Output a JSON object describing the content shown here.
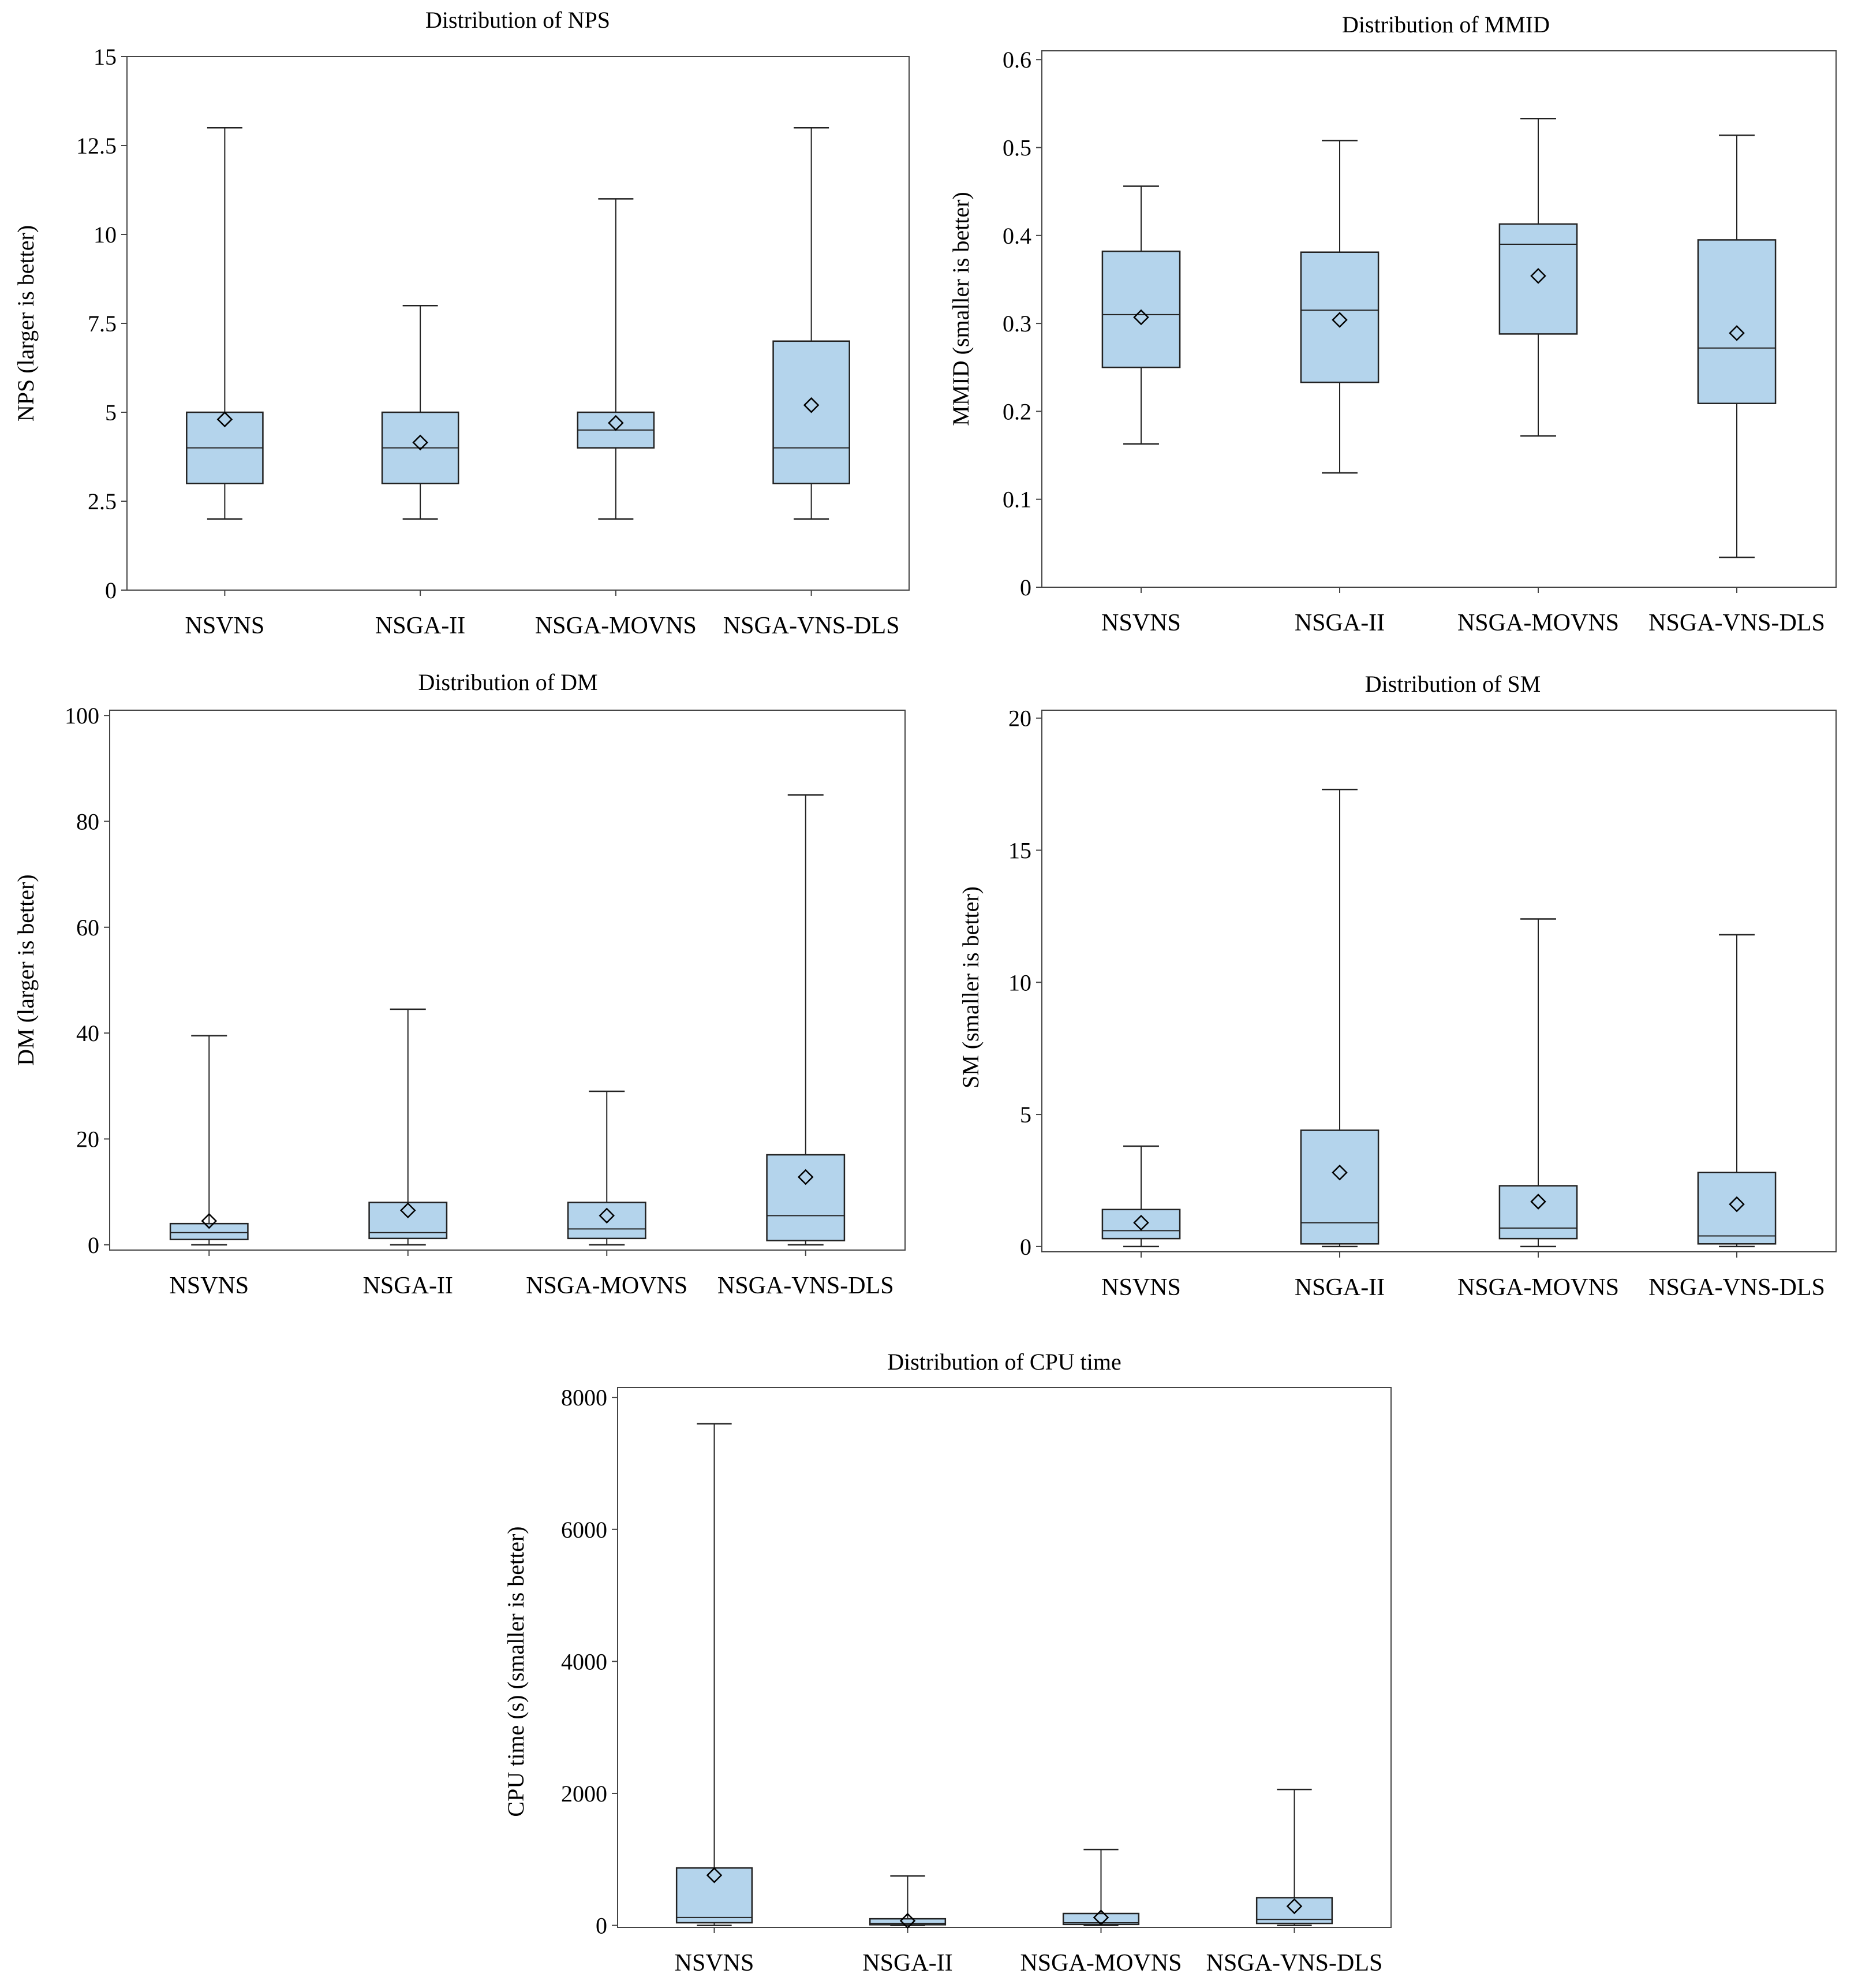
{
  "style": {
    "box_fill": "#b4d4ec",
    "box_stroke": "#222222",
    "frame_stroke": "#444444",
    "background": "#ffffff"
  },
  "chart_data": [
    {
      "id": "nps",
      "type": "boxplot",
      "title": "Distribution of NPS",
      "ylabel": "NPS (larger is better)",
      "ylim": [
        0,
        15
      ],
      "yticks": [
        0,
        2.5,
        5,
        7.5,
        10,
        12.5,
        15
      ],
      "ytick_labels": [
        "0",
        "2.5",
        "5",
        "7.5",
        "10",
        "12.5",
        "15"
      ],
      "categories": [
        "NSVNS",
        "NSGA-II",
        "NSGA-MOVNS",
        "NSGA-VNS-DLS"
      ],
      "boxes": [
        {
          "min": 2,
          "q1": 3,
          "median": 4,
          "q3": 5,
          "max": 13,
          "mean": 4.8
        },
        {
          "min": 2,
          "q1": 3,
          "median": 4,
          "q3": 5,
          "max": 8,
          "mean": 4.15
        },
        {
          "min": 2,
          "q1": 4,
          "median": 4.5,
          "q3": 5,
          "max": 11,
          "mean": 4.7
        },
        {
          "min": 2,
          "q1": 3,
          "median": 4,
          "q3": 7,
          "max": 13,
          "mean": 5.2
        }
      ]
    },
    {
      "id": "mmid",
      "type": "boxplot",
      "title": "Distribution of MMID",
      "ylabel": "MMID (smaller is better)",
      "ylim": [
        0,
        0.61
      ],
      "yticks": [
        0,
        0.1,
        0.2,
        0.3,
        0.4,
        0.5,
        0.6
      ],
      "ytick_labels": [
        "0",
        "0.1",
        "0.2",
        "0.3",
        "0.4",
        "0.5",
        "0.6"
      ],
      "categories": [
        "NSVNS",
        "NSGA-II",
        "NSGA-MOVNS",
        "NSGA-VNS-DLS"
      ],
      "boxes": [
        {
          "min": 0.163,
          "q1": 0.25,
          "median": 0.31,
          "q3": 0.382,
          "max": 0.456,
          "mean": 0.307
        },
        {
          "min": 0.13,
          "q1": 0.233,
          "median": 0.315,
          "q3": 0.381,
          "max": 0.508,
          "mean": 0.304
        },
        {
          "min": 0.172,
          "q1": 0.288,
          "median": 0.39,
          "q3": 0.413,
          "max": 0.533,
          "mean": 0.354
        },
        {
          "min": 0.034,
          "q1": 0.209,
          "median": 0.272,
          "q3": 0.395,
          "max": 0.514,
          "mean": 0.289
        }
      ]
    },
    {
      "id": "dm",
      "type": "boxplot",
      "title": "Distribution of DM",
      "ylabel": "DM (larger is better)",
      "ylim": [
        -1,
        101
      ],
      "yticks": [
        0,
        20,
        40,
        60,
        80,
        100
      ],
      "ytick_labels": [
        "0",
        "20",
        "40",
        "60",
        "80",
        "100"
      ],
      "categories": [
        "NSVNS",
        "NSGA-II",
        "NSGA-MOVNS",
        "NSGA-VNS-DLS"
      ],
      "boxes": [
        {
          "min": 0,
          "q1": 1,
          "median": 2.3,
          "q3": 4,
          "max": 39.5,
          "mean": 4.5
        },
        {
          "min": 0,
          "q1": 1.2,
          "median": 2.3,
          "q3": 8,
          "max": 44.5,
          "mean": 6.5
        },
        {
          "min": 0,
          "q1": 1.2,
          "median": 3,
          "q3": 8,
          "max": 29,
          "mean": 5.5
        },
        {
          "min": 0,
          "q1": 0.8,
          "median": 5.5,
          "q3": 17,
          "max": 85,
          "mean": 12.8
        }
      ]
    },
    {
      "id": "sm",
      "type": "boxplot",
      "title": "Distribution of SM",
      "ylabel": "SM (smaller is better)",
      "ylim": [
        -0.2,
        20.3
      ],
      "yticks": [
        0,
        5,
        10,
        15,
        20
      ],
      "ytick_labels": [
        "0",
        "5",
        "10",
        "15",
        "20"
      ],
      "categories": [
        "NSVNS",
        "NSGA-II",
        "NSGA-MOVNS",
        "NSGA-VNS-DLS"
      ],
      "boxes": [
        {
          "min": 0,
          "q1": 0.3,
          "median": 0.6,
          "q3": 1.4,
          "max": 3.8,
          "mean": 0.9
        },
        {
          "min": 0,
          "q1": 0.1,
          "median": 0.9,
          "q3": 4.4,
          "max": 17.3,
          "mean": 2.8
        },
        {
          "min": 0,
          "q1": 0.3,
          "median": 0.7,
          "q3": 2.3,
          "max": 12.4,
          "mean": 1.7
        },
        {
          "min": 0,
          "q1": 0.1,
          "median": 0.4,
          "q3": 2.8,
          "max": 11.8,
          "mean": 1.6
        }
      ]
    },
    {
      "id": "cpu",
      "type": "boxplot",
      "title": "Distribution of CPU time",
      "ylabel": "CPU time (s) (smaller is better)",
      "ylim": [
        -30,
        8150
      ],
      "yticks": [
        0,
        2000,
        4000,
        6000,
        8000
      ],
      "ytick_labels": [
        "0",
        "2000",
        "4000",
        "6000",
        "8000"
      ],
      "categories": [
        "NSVNS",
        "NSGA-II",
        "NSGA-MOVNS",
        "NSGA-VNS-DLS"
      ],
      "boxes": [
        {
          "min": 0,
          "q1": 40,
          "median": 120,
          "q3": 870,
          "max": 7600,
          "mean": 760
        },
        {
          "min": 0,
          "q1": 10,
          "median": 30,
          "q3": 100,
          "max": 750,
          "mean": 70
        },
        {
          "min": 0,
          "q1": 15,
          "median": 40,
          "q3": 180,
          "max": 1150,
          "mean": 120
        },
        {
          "min": 0,
          "q1": 30,
          "median": 90,
          "q3": 420,
          "max": 2060,
          "mean": 290
        }
      ]
    }
  ]
}
